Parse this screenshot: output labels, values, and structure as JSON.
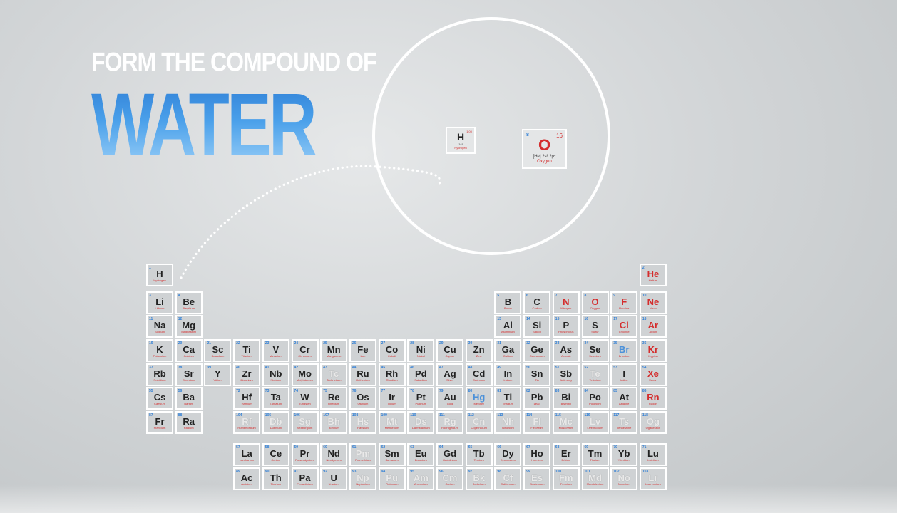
{
  "headline": {
    "line1": "FORM THE COMPOUND OF",
    "line2": "WATER"
  },
  "zoom": {
    "hydrogen": {
      "symbol": "H",
      "mass": "1.00",
      "config": "1s¹",
      "name": "Hydrogen"
    },
    "oxygen": {
      "number": "8",
      "mass": "16",
      "symbol": "O",
      "config": "[He] 2s² 2p⁴",
      "name": "Oxygen"
    }
  },
  "colors": {
    "accent_blue": "#2f7fd6",
    "accent_red": "#d42d2d",
    "tile": "#cfd2d4",
    "outline": "#ffffff"
  },
  "elements": [
    {
      "s": "H",
      "r": 1,
      "c": 1,
      "n": 1,
      "nm": "Hydrogen"
    },
    {
      "s": "He",
      "r": 1,
      "c": 18,
      "n": 2,
      "nm": "Helium",
      "col": "red"
    },
    {
      "s": "Li",
      "r": 2,
      "c": 1,
      "n": 3,
      "nm": "Lithium"
    },
    {
      "s": "Be",
      "r": 2,
      "c": 2,
      "n": 4,
      "nm": "Beryllium"
    },
    {
      "s": "B",
      "r": 2,
      "c": 13,
      "n": 5,
      "nm": "Boron"
    },
    {
      "s": "C",
      "r": 2,
      "c": 14,
      "n": 6,
      "nm": "Carbon"
    },
    {
      "s": "N",
      "r": 2,
      "c": 15,
      "n": 7,
      "nm": "Nitrogen",
      "col": "red"
    },
    {
      "s": "O",
      "r": 2,
      "c": 16,
      "n": 8,
      "nm": "Oxygen",
      "col": "red"
    },
    {
      "s": "F",
      "r": 2,
      "c": 17,
      "n": 9,
      "nm": "Fluorine",
      "col": "red"
    },
    {
      "s": "Ne",
      "r": 2,
      "c": 18,
      "n": 10,
      "nm": "Neon",
      "col": "red"
    },
    {
      "s": "Na",
      "r": 3,
      "c": 1,
      "n": 11,
      "nm": "Sodium"
    },
    {
      "s": "Mg",
      "r": 3,
      "c": 2,
      "n": 12,
      "nm": "Magnesium"
    },
    {
      "s": "Al",
      "r": 3,
      "c": 13,
      "n": 13,
      "nm": "Aluminium"
    },
    {
      "s": "Si",
      "r": 3,
      "c": 14,
      "n": 14,
      "nm": "Silicon"
    },
    {
      "s": "P",
      "r": 3,
      "c": 15,
      "n": 15,
      "nm": "Phosphorus"
    },
    {
      "s": "S",
      "r": 3,
      "c": 16,
      "n": 16,
      "nm": "Sulfur"
    },
    {
      "s": "Cl",
      "r": 3,
      "c": 17,
      "n": 17,
      "nm": "Chlorine",
      "col": "red"
    },
    {
      "s": "Ar",
      "r": 3,
      "c": 18,
      "n": 18,
      "nm": "Argon",
      "col": "red"
    },
    {
      "s": "K",
      "r": 4,
      "c": 1,
      "n": 19,
      "nm": "Potassium"
    },
    {
      "s": "Ca",
      "r": 4,
      "c": 2,
      "n": 20,
      "nm": "Calcium"
    },
    {
      "s": "Sc",
      "r": 4,
      "c": 3,
      "n": 21,
      "nm": "Scandium"
    },
    {
      "s": "Ti",
      "r": 4,
      "c": 4,
      "n": 22,
      "nm": "Titanium"
    },
    {
      "s": "V",
      "r": 4,
      "c": 5,
      "n": 23,
      "nm": "Vanadium"
    },
    {
      "s": "Cr",
      "r": 4,
      "c": 6,
      "n": 24,
      "nm": "Chromium"
    },
    {
      "s": "Mn",
      "r": 4,
      "c": 7,
      "n": 25,
      "nm": "Manganese"
    },
    {
      "s": "Fe",
      "r": 4,
      "c": 8,
      "n": 26,
      "nm": "Iron"
    },
    {
      "s": "Co",
      "r": 4,
      "c": 9,
      "n": 27,
      "nm": "Cobalt"
    },
    {
      "s": "Ni",
      "r": 4,
      "c": 10,
      "n": 28,
      "nm": "Nickel"
    },
    {
      "s": "Cu",
      "r": 4,
      "c": 11,
      "n": 29,
      "nm": "Copper"
    },
    {
      "s": "Zn",
      "r": 4,
      "c": 12,
      "n": 30,
      "nm": "Zinc"
    },
    {
      "s": "Ga",
      "r": 4,
      "c": 13,
      "n": 31,
      "nm": "Gallium"
    },
    {
      "s": "Ge",
      "r": 4,
      "c": 14,
      "n": 32,
      "nm": "Germanium"
    },
    {
      "s": "As",
      "r": 4,
      "c": 15,
      "n": 33,
      "nm": "Arsenic"
    },
    {
      "s": "Se",
      "r": 4,
      "c": 16,
      "n": 34,
      "nm": "Selenium"
    },
    {
      "s": "Br",
      "r": 4,
      "c": 17,
      "n": 35,
      "nm": "Bromine",
      "col": "blue"
    },
    {
      "s": "Kr",
      "r": 4,
      "c": 18,
      "n": 36,
      "nm": "Krypton",
      "col": "red"
    },
    {
      "s": "Rb",
      "r": 5,
      "c": 1,
      "n": 37,
      "nm": "Rubidium"
    },
    {
      "s": "Sr",
      "r": 5,
      "c": 2,
      "n": 38,
      "nm": "Strontium"
    },
    {
      "s": "Y",
      "r": 5,
      "c": 3,
      "n": 39,
      "nm": "Yttrium"
    },
    {
      "s": "Zr",
      "r": 5,
      "c": 4,
      "n": 40,
      "nm": "Zirconium"
    },
    {
      "s": "Nb",
      "r": 5,
      "c": 5,
      "n": 41,
      "nm": "Niobium"
    },
    {
      "s": "Mo",
      "r": 5,
      "c": 6,
      "n": 42,
      "nm": "Molybdenum"
    },
    {
      "s": "Tc",
      "r": 5,
      "c": 7,
      "n": 43,
      "nm": "Technetium",
      "col": "ghost"
    },
    {
      "s": "Ru",
      "r": 5,
      "c": 8,
      "n": 44,
      "nm": "Ruthenium"
    },
    {
      "s": "Rh",
      "r": 5,
      "c": 9,
      "n": 45,
      "nm": "Rhodium"
    },
    {
      "s": "Pd",
      "r": 5,
      "c": 10,
      "n": 46,
      "nm": "Palladium"
    },
    {
      "s": "Ag",
      "r": 5,
      "c": 11,
      "n": 47,
      "nm": "Silver"
    },
    {
      "s": "Cd",
      "r": 5,
      "c": 12,
      "n": 48,
      "nm": "Cadmium"
    },
    {
      "s": "In",
      "r": 5,
      "c": 13,
      "n": 49,
      "nm": "Indium"
    },
    {
      "s": "Sn",
      "r": 5,
      "c": 14,
      "n": 50,
      "nm": "Tin"
    },
    {
      "s": "Sb",
      "r": 5,
      "c": 15,
      "n": 51,
      "nm": "Antimony"
    },
    {
      "s": "Te",
      "r": 5,
      "c": 16,
      "n": 52,
      "nm": "Tellurium",
      "col": "ghost"
    },
    {
      "s": "I",
      "r": 5,
      "c": 17,
      "n": 53,
      "nm": "Iodine"
    },
    {
      "s": "Xe",
      "r": 5,
      "c": 18,
      "n": 54,
      "nm": "Xenon",
      "col": "red"
    },
    {
      "s": "Cs",
      "r": 6,
      "c": 1,
      "n": 55,
      "nm": "Caesium"
    },
    {
      "s": "Ba",
      "r": 6,
      "c": 2,
      "n": 56,
      "nm": "Barium"
    },
    {
      "s": "Hf",
      "r": 6,
      "c": 4,
      "n": 72,
      "nm": "Hafnium"
    },
    {
      "s": "Ta",
      "r": 6,
      "c": 5,
      "n": 73,
      "nm": "Tantalum"
    },
    {
      "s": "W",
      "r": 6,
      "c": 6,
      "n": 74,
      "nm": "Tungsten"
    },
    {
      "s": "Re",
      "r": 6,
      "c": 7,
      "n": 75,
      "nm": "Rhenium"
    },
    {
      "s": "Os",
      "r": 6,
      "c": 8,
      "n": 76,
      "nm": "Osmium"
    },
    {
      "s": "Ir",
      "r": 6,
      "c": 9,
      "n": 77,
      "nm": "Iridium"
    },
    {
      "s": "Pt",
      "r": 6,
      "c": 10,
      "n": 78,
      "nm": "Platinum"
    },
    {
      "s": "Au",
      "r": 6,
      "c": 11,
      "n": 79,
      "nm": "Gold"
    },
    {
      "s": "Hg",
      "r": 6,
      "c": 12,
      "n": 80,
      "nm": "Mercury",
      "col": "blue"
    },
    {
      "s": "Tl",
      "r": 6,
      "c": 13,
      "n": 81,
      "nm": "Thallium"
    },
    {
      "s": "Pb",
      "r": 6,
      "c": 14,
      "n": 82,
      "nm": "Lead"
    },
    {
      "s": "Bi",
      "r": 6,
      "c": 15,
      "n": 83,
      "nm": "Bismuth"
    },
    {
      "s": "Po",
      "r": 6,
      "c": 16,
      "n": 84,
      "nm": "Polonium"
    },
    {
      "s": "At",
      "r": 6,
      "c": 17,
      "n": 85,
      "nm": "Astatine"
    },
    {
      "s": "Rn",
      "r": 6,
      "c": 18,
      "n": 86,
      "nm": "Radon",
      "col": "red"
    },
    {
      "s": "Fr",
      "r": 7,
      "c": 1,
      "n": 87,
      "nm": "Francium"
    },
    {
      "s": "Ra",
      "r": 7,
      "c": 2,
      "n": 88,
      "nm": "Radium"
    },
    {
      "s": "Rf",
      "r": 7,
      "c": 4,
      "n": 104,
      "nm": "Rutherfordium",
      "col": "ghost"
    },
    {
      "s": "Db",
      "r": 7,
      "c": 5,
      "n": 105,
      "nm": "Dubnium",
      "col": "ghost"
    },
    {
      "s": "Sg",
      "r": 7,
      "c": 6,
      "n": 106,
      "nm": "Seaborgium",
      "col": "ghost"
    },
    {
      "s": "Bh",
      "r": 7,
      "c": 7,
      "n": 107,
      "nm": "Bohrium",
      "col": "ghost"
    },
    {
      "s": "Hs",
      "r": 7,
      "c": 8,
      "n": 108,
      "nm": "Hassium",
      "col": "ghost"
    },
    {
      "s": "Mt",
      "r": 7,
      "c": 9,
      "n": 109,
      "nm": "Meitnerium",
      "col": "ghost"
    },
    {
      "s": "Ds",
      "r": 7,
      "c": 10,
      "n": 110,
      "nm": "Darmstadtium",
      "col": "ghost"
    },
    {
      "s": "Rg",
      "r": 7,
      "c": 11,
      "n": 111,
      "nm": "Roentgenium",
      "col": "ghost"
    },
    {
      "s": "Cn",
      "r": 7,
      "c": 12,
      "n": 112,
      "nm": "Copernicium",
      "col": "ghost"
    },
    {
      "s": "Nh",
      "r": 7,
      "c": 13,
      "n": 113,
      "nm": "Nihonium",
      "col": "ghost"
    },
    {
      "s": "Fl",
      "r": 7,
      "c": 14,
      "n": 114,
      "nm": "Flerovium",
      "col": "ghost"
    },
    {
      "s": "Mc",
      "r": 7,
      "c": 15,
      "n": 115,
      "nm": "Moscovium",
      "col": "ghost"
    },
    {
      "s": "Lv",
      "r": 7,
      "c": 16,
      "n": 116,
      "nm": "Livermorium",
      "col": "ghost"
    },
    {
      "s": "Ts",
      "r": 7,
      "c": 17,
      "n": 117,
      "nm": "Tennessine",
      "col": "ghost"
    },
    {
      "s": "Og",
      "r": 7,
      "c": 18,
      "n": 118,
      "nm": "Oganesson",
      "col": "ghost"
    },
    {
      "s": "La",
      "r": 8,
      "c": 4,
      "n": 57,
      "nm": "Lanthanum"
    },
    {
      "s": "Ce",
      "r": 8,
      "c": 5,
      "n": 58,
      "nm": "Cerium"
    },
    {
      "s": "Pr",
      "r": 8,
      "c": 6,
      "n": 59,
      "nm": "Praseodymium"
    },
    {
      "s": "Nd",
      "r": 8,
      "c": 7,
      "n": 60,
      "nm": "Neodymium"
    },
    {
      "s": "Pm",
      "r": 8,
      "c": 8,
      "n": 61,
      "nm": "Promethium",
      "col": "ghost"
    },
    {
      "s": "Sm",
      "r": 8,
      "c": 9,
      "n": 62,
      "nm": "Samarium"
    },
    {
      "s": "Eu",
      "r": 8,
      "c": 10,
      "n": 63,
      "nm": "Europium"
    },
    {
      "s": "Gd",
      "r": 8,
      "c": 11,
      "n": 64,
      "nm": "Gadolinium"
    },
    {
      "s": "Tb",
      "r": 8,
      "c": 12,
      "n": 65,
      "nm": "Terbium"
    },
    {
      "s": "Dy",
      "r": 8,
      "c": 13,
      "n": 66,
      "nm": "Dysprosium"
    },
    {
      "s": "Ho",
      "r": 8,
      "c": 14,
      "n": 67,
      "nm": "Holmium"
    },
    {
      "s": "Er",
      "r": 8,
      "c": 15,
      "n": 68,
      "nm": "Erbium"
    },
    {
      "s": "Tm",
      "r": 8,
      "c": 16,
      "n": 69,
      "nm": "Thulium"
    },
    {
      "s": "Yb",
      "r": 8,
      "c": 17,
      "n": 70,
      "nm": "Ytterbium"
    },
    {
      "s": "Lu",
      "r": 8,
      "c": 18,
      "n": 71,
      "nm": "Lutetium"
    },
    {
      "s": "Ac",
      "r": 9,
      "c": 4,
      "n": 89,
      "nm": "Actinium"
    },
    {
      "s": "Th",
      "r": 9,
      "c": 5,
      "n": 90,
      "nm": "Thorium"
    },
    {
      "s": "Pa",
      "r": 9,
      "c": 6,
      "n": 91,
      "nm": "Protactinium"
    },
    {
      "s": "U",
      "r": 9,
      "c": 7,
      "n": 92,
      "nm": "Uranium"
    },
    {
      "s": "Np",
      "r": 9,
      "c": 8,
      "n": 93,
      "nm": "Neptunium",
      "col": "ghost"
    },
    {
      "s": "Pu",
      "r": 9,
      "c": 9,
      "n": 94,
      "nm": "Plutonium",
      "col": "ghost"
    },
    {
      "s": "Am",
      "r": 9,
      "c": 10,
      "n": 95,
      "nm": "Americium",
      "col": "ghost"
    },
    {
      "s": "Cm",
      "r": 9,
      "c": 11,
      "n": 96,
      "nm": "Curium",
      "col": "ghost"
    },
    {
      "s": "Bk",
      "r": 9,
      "c": 12,
      "n": 97,
      "nm": "Berkelium",
      "col": "ghost"
    },
    {
      "s": "Cf",
      "r": 9,
      "c": 13,
      "n": 98,
      "nm": "Californium",
      "col": "ghost"
    },
    {
      "s": "Es",
      "r": 9,
      "c": 14,
      "n": 99,
      "nm": "Einsteinium",
      "col": "ghost"
    },
    {
      "s": "Fm",
      "r": 9,
      "c": 15,
      "n": 100,
      "nm": "Fermium",
      "col": "ghost"
    },
    {
      "s": "Md",
      "r": 9,
      "c": 16,
      "n": 101,
      "nm": "Mendelevium",
      "col": "ghost"
    },
    {
      "s": "No",
      "r": 9,
      "c": 17,
      "n": 102,
      "nm": "Nobelium",
      "col": "ghost"
    },
    {
      "s": "Lr",
      "r": 9,
      "c": 18,
      "n": 103,
      "nm": "Lawrencium",
      "col": "ghost"
    }
  ]
}
